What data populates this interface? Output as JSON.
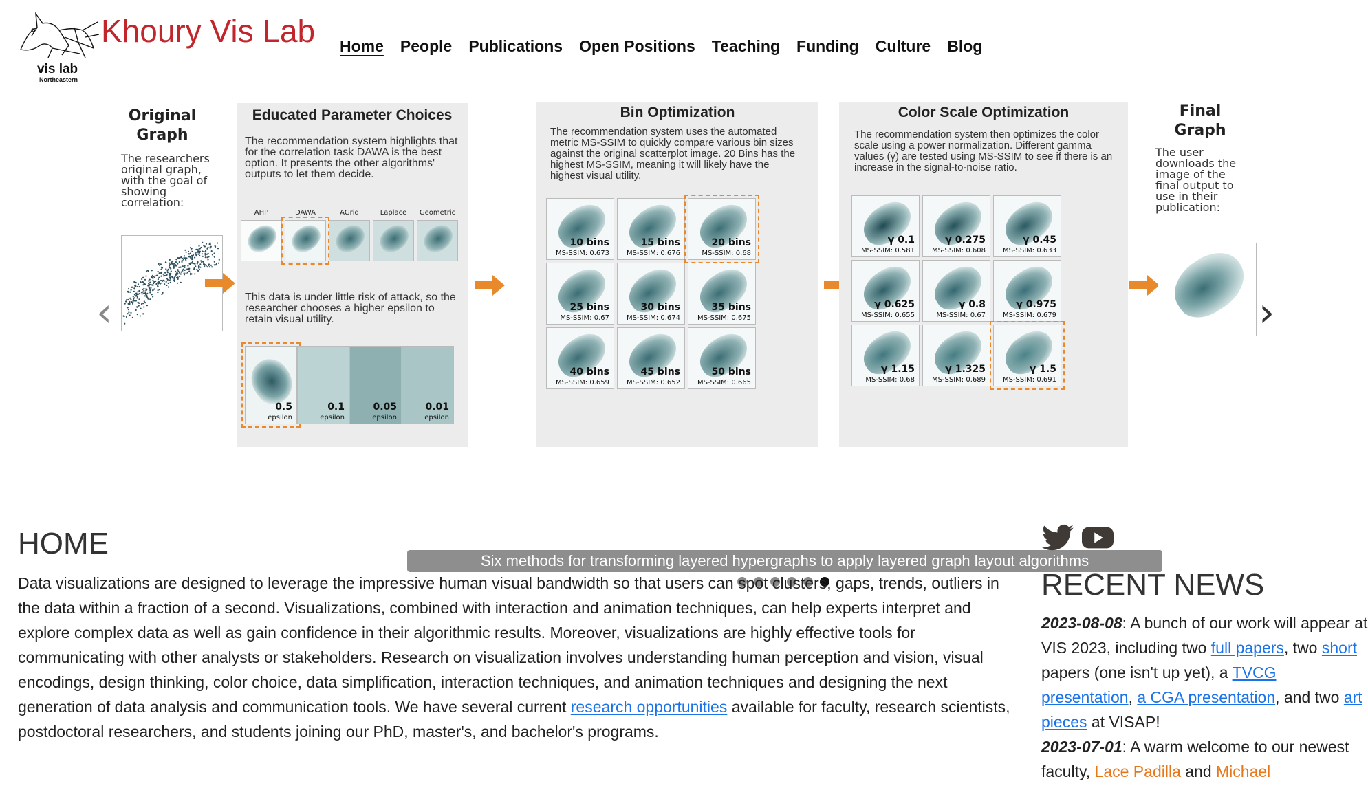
{
  "header": {
    "logo_text": "vis lab",
    "logo_subtext": "Northeastern",
    "site_title": "Khoury Vis Lab",
    "nav": [
      "Home",
      "People",
      "Publications",
      "Open Positions",
      "Teaching",
      "Funding",
      "Culture",
      "Blog"
    ],
    "active_nav": "Home"
  },
  "carousel": {
    "prev_glyph": "‹",
    "next_glyph": "›",
    "caption": "Six methods for transforming layered hypergraphs to apply layered graph layout algorithms",
    "dot_count": 6,
    "active_dot": 6,
    "stages": {
      "original": {
        "title": "Original Graph",
        "desc": "The researchers original graph, with the goal of showing correlation:"
      },
      "params": {
        "title": "Educated Parameter Choices",
        "desc": "The recommendation system highlights that for the correlation task DAWA is the best option. It presents the other algorithms' outputs to let them decide.",
        "algorithms": [
          "AHP",
          "DAWA",
          "AGrid",
          "Laplace",
          "Geometric"
        ],
        "desc2": "This data is under little risk of attack, so the researcher chooses a higher epsilon to retain visual utility.",
        "epsilons": [
          {
            "value": "0.5",
            "label": "epsilon"
          },
          {
            "value": "0.1",
            "label": "epsilon"
          },
          {
            "value": "0.05",
            "label": "epsilon"
          },
          {
            "value": "0.01",
            "label": "epsilon"
          }
        ]
      },
      "bins": {
        "title": "Bin Optimization",
        "desc": "The recommendation system uses the automated metric MS-SSIM to quickly compare various bin sizes against the original scatterplot image. 20 Bins has the highest MS-SSIM, meaning it will likely have the highest visual utility.",
        "cells": [
          {
            "label": "10 bins",
            "sub": "MS-SSIM: 0.673"
          },
          {
            "label": "15 bins",
            "sub": "MS-SSIM: 0.676"
          },
          {
            "label": "20 bins",
            "sub": "MS-SSIM: 0.68"
          },
          {
            "label": "25 bins",
            "sub": "MS-SSIM: 0.67"
          },
          {
            "label": "30 bins",
            "sub": "MS-SSIM: 0.674"
          },
          {
            "label": "35 bins",
            "sub": "MS-SSIM: 0.675"
          },
          {
            "label": "40 bins",
            "sub": "MS-SSIM: 0.659"
          },
          {
            "label": "45 bins",
            "sub": "MS-SSIM: 0.652"
          },
          {
            "label": "50 bins",
            "sub": "MS-SSIM: 0.665"
          }
        ]
      },
      "color": {
        "title": "Color Scale Optimization",
        "desc": "The recommendation system then optimizes the color scale using a power normalization. Different gamma values (γ) are tested using MS-SSIM to see if there is an increase in the signal-to-noise ratio.",
        "cells": [
          {
            "label": "γ 0.1",
            "sub": "MS-SSIM: 0.581"
          },
          {
            "label": "γ 0.275",
            "sub": "MS-SSIM: 0.608"
          },
          {
            "label": "γ 0.45",
            "sub": "MS-SSIM: 0.633"
          },
          {
            "label": "γ 0.625",
            "sub": "MS-SSIM: 0.655"
          },
          {
            "label": "γ 0.8",
            "sub": "MS-SSIM: 0.67"
          },
          {
            "label": "γ 0.975",
            "sub": "MS-SSIM: 0.679"
          },
          {
            "label": "γ 1.15",
            "sub": "MS-SSIM: 0.68"
          },
          {
            "label": "γ 1.325",
            "sub": "MS-SSIM: 0.689"
          },
          {
            "label": "γ 1.5",
            "sub": "MS-SSIM: 0.691"
          }
        ]
      },
      "final": {
        "title": "Final Graph",
        "desc": "The user downloads the image of the final output to use in their publication:"
      }
    }
  },
  "home": {
    "title": "HOME",
    "text_before": "Data visualizations are designed to leverage the impressive human visual bandwidth so that users can spot clusters, gaps, trends, outliers in the data within a fraction of a second. Visualizations, combined with interaction and animation techniques, can help experts interpret and explore complex data as well as gain confidence in their algorithmic results. Moreover, visualizations are highly effective tools for communicating with other analysts or stakeholders. Research on visualization involves understanding human perception and vision, visual encodings, design thinking, color choice, data simplification, interaction techniques, and animation techniques and designing the next generation of data analysis and communication tools. We have several current ",
    "link": "research opportunities",
    "text_after": " available for faculty, research scientists, postdoctoral researchers, and students joining our PhD, master's, and bachelor's programs."
  },
  "news": {
    "title": "RECENT NEWS",
    "item1": {
      "date": "2023-08-08",
      "t1": ": A bunch of our work will appear at VIS 2023, including two ",
      "l1": "full papers",
      "t2": ", two ",
      "l2": "short",
      "t3": " papers (one isn't up yet), a ",
      "l3": "TVCG presentation",
      "t4": ", ",
      "l4": "a CGA presentation",
      "t5": ", and two ",
      "l5": "art",
      "t6": " ",
      "l6": "pieces",
      "t7": " at VISAP!"
    },
    "item2": {
      "date": "2023-07-01",
      "t1": ": A warm welcome to our newest faculty, ",
      "p1": "Lace Padilla",
      "t2": " and ",
      "p2": "Michael"
    }
  },
  "colors": {
    "title_red": "#c0262b",
    "link_blue": "#1a73e8",
    "person_orange": "#e8771a",
    "arrow_orange": "#e88a2c",
    "heat_dark": "#2e5a63"
  },
  "icons": [
    "twitter-icon",
    "youtube-icon"
  ]
}
